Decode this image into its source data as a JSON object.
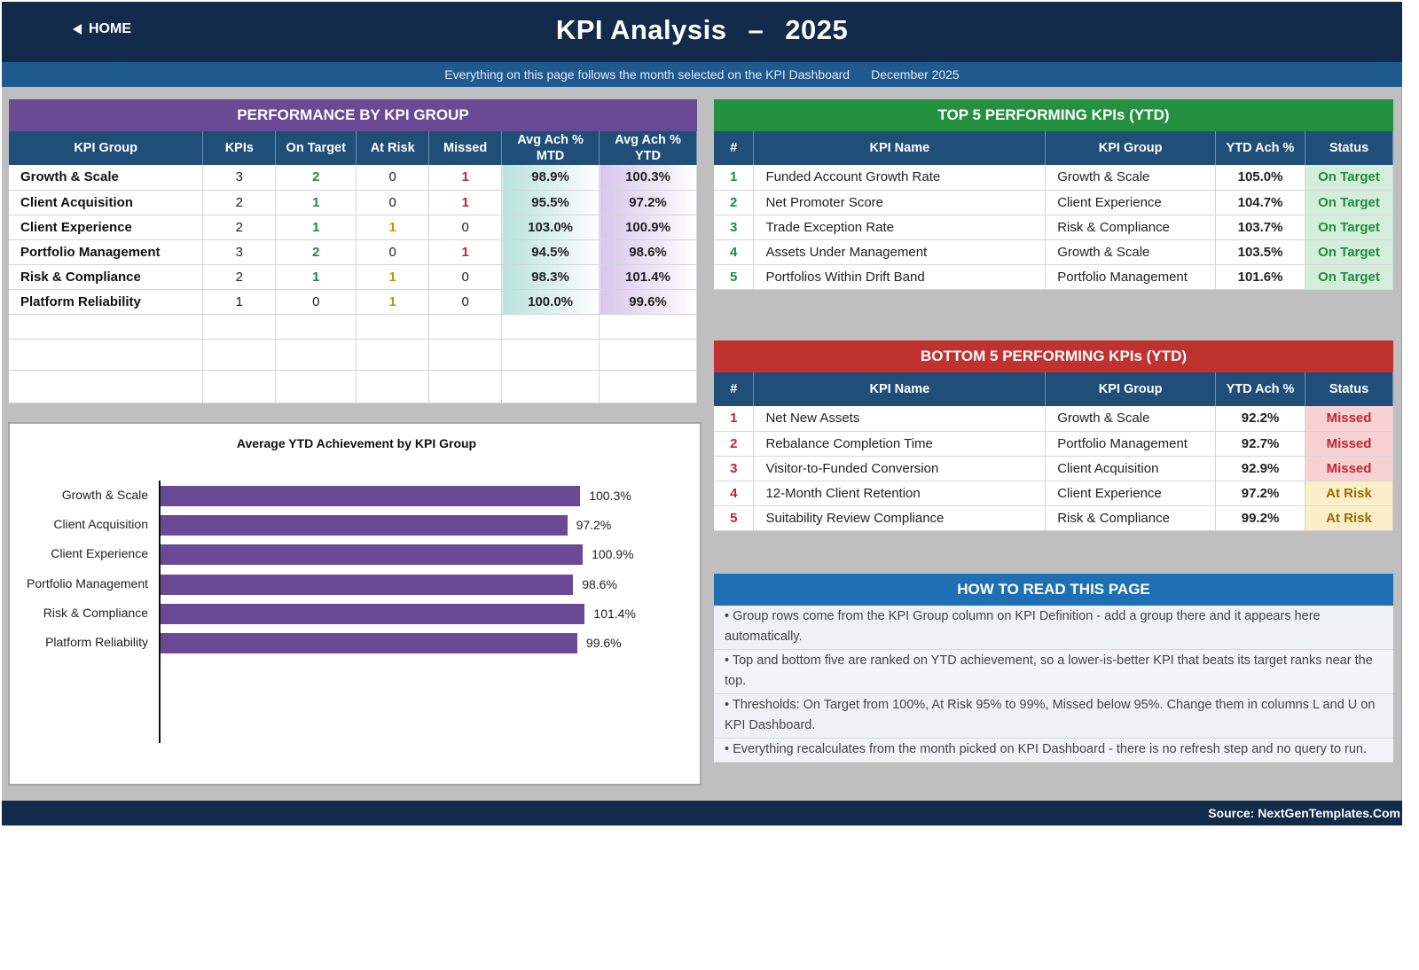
{
  "header": {
    "home_label": "HOME",
    "title_left": "KPI Analysis",
    "title_dash": "–",
    "title_year": "2025"
  },
  "subbar": {
    "note": "Everything on this page follows the month selected on the KPI Dashboard",
    "month": "December 2025"
  },
  "group_table": {
    "title": "PERFORMANCE BY KPI GROUP",
    "columns": [
      "KPI Group",
      "KPIs",
      "On Target",
      "At Risk",
      "Missed",
      "Avg Ach %\nMTD",
      "Avg Ach %\nYTD"
    ],
    "rows": [
      {
        "group": "Growth & Scale",
        "kpis": "3",
        "on_target": "2",
        "at_risk": "0",
        "missed": "1",
        "mtd": "98.9%",
        "ytd": "100.3%"
      },
      {
        "group": "Client Acquisition",
        "kpis": "2",
        "on_target": "1",
        "at_risk": "0",
        "missed": "1",
        "mtd": "95.5%",
        "ytd": "97.2%"
      },
      {
        "group": "Client Experience",
        "kpis": "2",
        "on_target": "1",
        "at_risk": "1",
        "missed": "0",
        "mtd": "103.0%",
        "ytd": "100.9%"
      },
      {
        "group": "Portfolio Management",
        "kpis": "3",
        "on_target": "2",
        "at_risk": "0",
        "missed": "1",
        "mtd": "94.5%",
        "ytd": "98.6%"
      },
      {
        "group": "Risk & Compliance",
        "kpis": "2",
        "on_target": "1",
        "at_risk": "1",
        "missed": "0",
        "mtd": "98.3%",
        "ytd": "101.4%"
      },
      {
        "group": "Platform Reliability",
        "kpis": "1",
        "on_target": "0",
        "at_risk": "1",
        "missed": "0",
        "mtd": "100.0%",
        "ytd": "99.6%"
      }
    ]
  },
  "top5": {
    "title": "TOP 5 PERFORMING KPIs  (YTD)",
    "columns": [
      "#",
      "KPI Name",
      "KPI Group",
      "YTD Ach %",
      "Status"
    ],
    "rows": [
      {
        "rank": "1",
        "name": "Funded Account Growth Rate",
        "group": "Growth & Scale",
        "ytd": "105.0%",
        "status": "On Target"
      },
      {
        "rank": "2",
        "name": "Net Promoter Score",
        "group": "Client Experience",
        "ytd": "104.7%",
        "status": "On Target"
      },
      {
        "rank": "3",
        "name": "Trade Exception Rate",
        "group": "Risk & Compliance",
        "ytd": "103.7%",
        "status": "On Target"
      },
      {
        "rank": "4",
        "name": "Assets Under Management",
        "group": "Growth & Scale",
        "ytd": "103.5%",
        "status": "On Target"
      },
      {
        "rank": "5",
        "name": "Portfolios Within Drift Band",
        "group": "Portfolio Management",
        "ytd": "101.6%",
        "status": "On Target"
      }
    ]
  },
  "bottom5": {
    "title": "BOTTOM 5 PERFORMING KPIs  (YTD)",
    "columns": [
      "#",
      "KPI Name",
      "KPI Group",
      "YTD Ach %",
      "Status"
    ],
    "rows": [
      {
        "rank": "1",
        "name": "Net New Assets",
        "group": "Growth & Scale",
        "ytd": "92.2%",
        "status": "Missed"
      },
      {
        "rank": "2",
        "name": "Rebalance Completion Time",
        "group": "Portfolio Management",
        "ytd": "92.7%",
        "status": "Missed"
      },
      {
        "rank": "3",
        "name": "Visitor-to-Funded Conversion",
        "group": "Client Acquisition",
        "ytd": "92.9%",
        "status": "Missed"
      },
      {
        "rank": "4",
        "name": "12-Month Client Retention",
        "group": "Client Experience",
        "ytd": "97.2%",
        "status": "At Risk"
      },
      {
        "rank": "5",
        "name": "Suitability Review Compliance",
        "group": "Risk & Compliance",
        "ytd": "99.2%",
        "status": "At Risk"
      }
    ]
  },
  "howto": {
    "title": "HOW TO READ THIS PAGE",
    "items": [
      "•  Group rows come from the KPI Group column on KPI Definition - add a group there and it appears here automatically.",
      "•  Top and bottom five are ranked on YTD achievement, so a lower-is-better KPI that beats its target ranks near the top.",
      "•  Thresholds: On Target from 100%, At Risk 95% to 99%, Missed below 95%. Change them in columns L and U on KPI Dashboard.",
      "•  Everything recalculates from the month picked on KPI Dashboard - there is no refresh step and no query to run."
    ]
  },
  "chart_data": {
    "type": "bar",
    "orientation": "horizontal",
    "title": "Average YTD Achievement by KPI Group",
    "categories": [
      "Growth & Scale",
      "Client Acquisition",
      "Client Experience",
      "Portfolio Management",
      "Risk & Compliance",
      "Platform Reliability"
    ],
    "values": [
      100.3,
      97.2,
      100.9,
      98.6,
      101.4,
      99.6
    ],
    "value_labels": [
      "100.3%",
      "97.2%",
      "100.9%",
      "98.6%",
      "101.4%",
      "99.6%"
    ],
    "color": "#6a4a94"
  },
  "footer": {
    "source": "Source: NextGenTemplates.Com"
  },
  "colors": {
    "navy": "#132b4a",
    "purple_header": "#6b4a95",
    "green_header": "#239140",
    "red_header": "#c0322e",
    "blue_header": "#1f6fb4"
  }
}
